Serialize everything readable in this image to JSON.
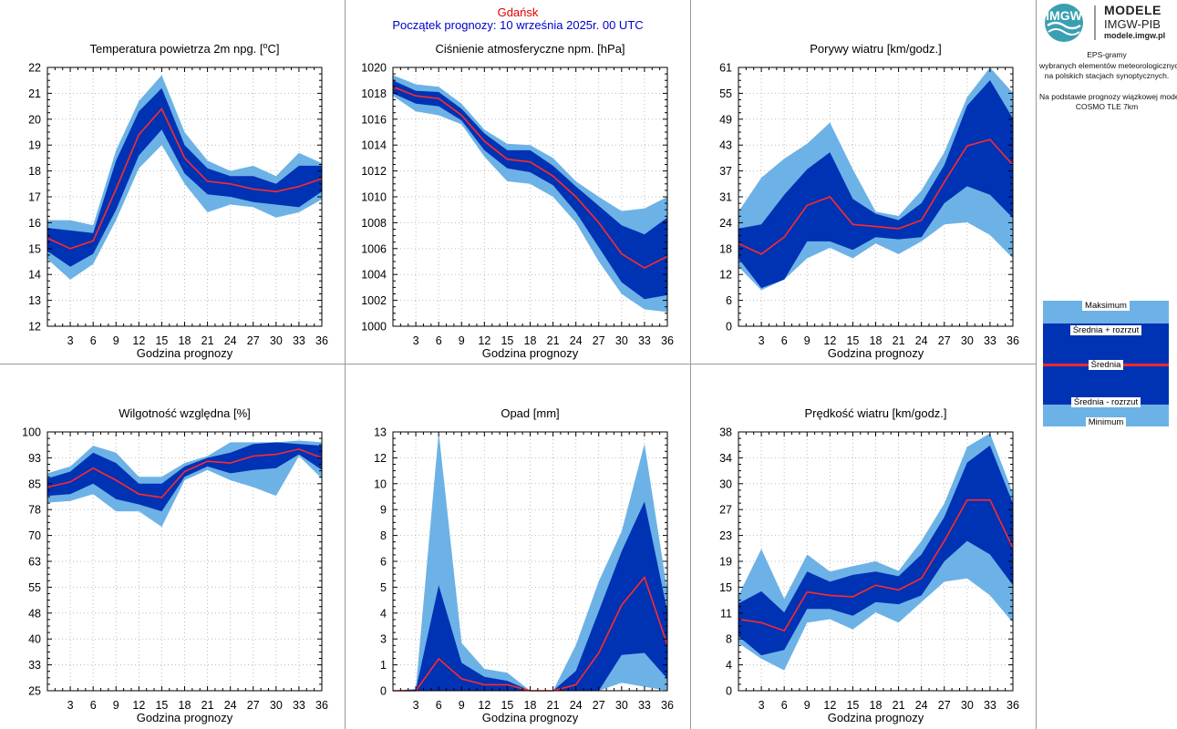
{
  "header": {
    "station": "Gdańsk",
    "forecast_start": "Początek prognozy: 10 września 2025r. 00 UTC"
  },
  "sidebar": {
    "logo_title": "MODELE",
    "logo_subtitle": "IMGW-PIB",
    "logo_url": "modele.imgw.pl",
    "logo_mark": "IMGW",
    "description_lines": [
      "EPS-gramy",
      "wybranych elementów meteorologicznych",
      "na polskich stacjach  synoptycznych.",
      "",
      "Na podstawie prognozy wiązkowej modelu",
      "COSMO TLE 7km"
    ],
    "legend": {
      "max": "Maksimum",
      "mean_plus": "Średnia + rozrzut",
      "mean": "Średnia",
      "mean_minus": "Średnia - rozrzut",
      "min": "Minimum"
    }
  },
  "colors": {
    "outer_band": "#6cb2e6",
    "inner_band": "#0032b4",
    "mean_line": "#ff2a2a",
    "grid": "#bbbbbb",
    "divider": "#999999"
  },
  "chart_data": [
    {
      "type": "area",
      "title": "Temperatura powietrza 2m npg. [°C]",
      "xlabel": "Godzina prognozy",
      "ylabel": "",
      "xlim": [
        0,
        36
      ],
      "ylim": [
        12,
        22
      ],
      "xticks": [
        3,
        6,
        9,
        12,
        15,
        18,
        21,
        24,
        27,
        30,
        33,
        36
      ],
      "yticks": [
        "12",
        "13",
        "14",
        "15",
        "16",
        "17",
        "18",
        "19",
        "20",
        "21",
        "22"
      ],
      "x": [
        0,
        3,
        6,
        9,
        12,
        15,
        18,
        21,
        24,
        27,
        30,
        33,
        36
      ],
      "series": [
        {
          "name": "Maksimum",
          "values": [
            16.1,
            16.1,
            15.9,
            18.8,
            20.7,
            21.7,
            19.5,
            18.4,
            18.0,
            18.2,
            17.8,
            18.7,
            18.3
          ]
        },
        {
          "name": "Średnia + rozrzut",
          "values": [
            15.8,
            15.7,
            15.6,
            18.4,
            20.3,
            21.2,
            19.0,
            18.1,
            17.8,
            17.8,
            17.5,
            18.2,
            18.2
          ]
        },
        {
          "name": "Średnia",
          "values": [
            15.4,
            15.0,
            15.3,
            17.3,
            19.4,
            20.4,
            18.5,
            17.6,
            17.5,
            17.3,
            17.2,
            17.4,
            17.7
          ]
        },
        {
          "name": "Średnia - rozrzut",
          "values": [
            14.9,
            14.3,
            14.8,
            16.5,
            18.6,
            19.6,
            17.9,
            17.1,
            17.0,
            16.8,
            16.7,
            16.6,
            17.2
          ]
        },
        {
          "name": "Minimum",
          "values": [
            14.6,
            13.8,
            14.4,
            16.1,
            18.1,
            19.0,
            17.5,
            16.4,
            16.7,
            16.6,
            16.2,
            16.4,
            16.9
          ]
        }
      ]
    },
    {
      "type": "area",
      "title": "Ciśnienie atmosferyczne npm. [hPa]",
      "xlabel": "Godzina prognozy",
      "ylabel": "",
      "xlim": [
        0,
        36
      ],
      "ylim": [
        1000,
        1020
      ],
      "xticks": [
        3,
        6,
        9,
        12,
        15,
        18,
        21,
        24,
        27,
        30,
        33,
        36
      ],
      "yticks": [
        "1000",
        "1002",
        "1004",
        "1006",
        "1008",
        "1010",
        "1012",
        "1014",
        "1016",
        "1018",
        "1020"
      ],
      "x": [
        0,
        3,
        6,
        9,
        12,
        15,
        18,
        21,
        24,
        27,
        30,
        33,
        36
      ],
      "series": [
        {
          "name": "Maksimum",
          "values": [
            1019.4,
            1018.7,
            1018.5,
            1017.2,
            1015.2,
            1014.1,
            1014.0,
            1013.0,
            1011.2,
            1010.0,
            1008.9,
            1009.1,
            1010.0
          ]
        },
        {
          "name": "Średnia + rozrzut",
          "values": [
            1019.0,
            1018.2,
            1018.1,
            1016.8,
            1014.9,
            1013.6,
            1013.6,
            1012.4,
            1010.8,
            1009.3,
            1007.8,
            1007.1,
            1008.4
          ]
        },
        {
          "name": "Średnia",
          "values": [
            1018.5,
            1017.8,
            1017.6,
            1016.3,
            1014.3,
            1012.9,
            1012.7,
            1011.6,
            1010.0,
            1008.0,
            1005.6,
            1004.5,
            1005.4
          ]
        },
        {
          "name": "Średnia - rozrzut",
          "values": [
            1018.0,
            1017.2,
            1017.0,
            1015.9,
            1013.6,
            1012.2,
            1011.9,
            1010.9,
            1008.8,
            1006.1,
            1003.4,
            1002.1,
            1002.4
          ]
        },
        {
          "name": "Minimum",
          "values": [
            1017.8,
            1016.6,
            1016.3,
            1015.6,
            1013.1,
            1011.2,
            1011.0,
            1010.0,
            1008.0,
            1005.0,
            1002.5,
            1001.3,
            1001.1
          ]
        }
      ]
    },
    {
      "type": "area",
      "title": "Porywy wiatru [km/godz.]",
      "xlabel": "Godzina prognozy",
      "ylabel": "",
      "xlim": [
        0,
        36
      ],
      "ylim": [
        0,
        61
      ],
      "xticks": [
        3,
        6,
        9,
        12,
        15,
        18,
        21,
        24,
        27,
        30,
        33,
        36
      ],
      "yticks": [
        "0",
        "6",
        "12",
        "18",
        "24",
        "31",
        "37",
        "43",
        "49",
        "55",
        "61"
      ],
      "x": [
        0,
        3,
        6,
        9,
        12,
        15,
        18,
        21,
        24,
        27,
        30,
        33,
        36
      ],
      "series": [
        {
          "name": "Maksimum",
          "values": [
            27.0,
            35.0,
            39.5,
            43.0,
            48.0,
            37.0,
            27.0,
            26.0,
            32.0,
            41.0,
            54.0,
            61.0,
            55.0
          ]
        },
        {
          "name": "Średnia + rozrzut",
          "values": [
            23.0,
            24.0,
            31.0,
            37.0,
            41.0,
            30.0,
            26.5,
            25.0,
            29.0,
            38.0,
            52.0,
            58.0,
            49.0
          ]
        },
        {
          "name": "Średnia",
          "values": [
            19.5,
            17.0,
            21.0,
            28.5,
            30.5,
            24.0,
            23.5,
            23.0,
            25.0,
            34.0,
            42.5,
            44.0,
            38.0
          ]
        },
        {
          "name": "Średnia - rozrzut",
          "values": [
            16.0,
            9.0,
            11.0,
            20.0,
            20.0,
            18.0,
            21.0,
            20.5,
            21.0,
            29.0,
            33.0,
            31.0,
            25.5
          ]
        },
        {
          "name": "Minimum",
          "values": [
            14.0,
            8.5,
            11.0,
            16.0,
            18.5,
            16.0,
            19.5,
            17.0,
            20.0,
            24.0,
            24.5,
            21.5,
            16.0
          ]
        }
      ]
    },
    {
      "type": "area",
      "title": "Wilgotność względna [%]",
      "xlabel": "Godzina prognozy",
      "ylabel": "",
      "xlim": [
        0,
        36
      ],
      "ylim": [
        25,
        100
      ],
      "xticks": [
        3,
        6,
        9,
        12,
        15,
        18,
        21,
        24,
        27,
        30,
        33,
        36
      ],
      "yticks": [
        "25",
        "33",
        "40",
        "48",
        "55",
        "63",
        "70",
        "78",
        "85",
        "93",
        "100"
      ],
      "x": [
        0,
        3,
        6,
        9,
        12,
        15,
        18,
        21,
        24,
        27,
        30,
        33,
        36
      ],
      "series": [
        {
          "name": "Maksimum",
          "values": [
            88.0,
            90.0,
            96.0,
            94.0,
            87.0,
            87.0,
            91.0,
            93.0,
            97.0,
            97.0,
            97.0,
            97.5,
            97.0
          ]
        },
        {
          "name": "Średnia + rozrzut",
          "values": [
            86.5,
            88.5,
            94.0,
            91.0,
            85.0,
            85.0,
            90.0,
            92.5,
            94.0,
            96.5,
            97.0,
            96.5,
            96.0
          ]
        },
        {
          "name": "Średnia",
          "values": [
            84.0,
            85.5,
            89.5,
            86.0,
            82.0,
            81.0,
            88.5,
            91.5,
            91.0,
            93.0,
            93.5,
            95.0,
            92.5
          ]
        },
        {
          "name": "Średnia - rozrzut",
          "values": [
            81.5,
            82.0,
            85.0,
            80.5,
            79.0,
            77.0,
            87.0,
            90.0,
            88.0,
            89.0,
            89.5,
            93.5,
            89.0
          ]
        },
        {
          "name": "Minimum",
          "values": [
            79.5,
            80.0,
            82.0,
            77.0,
            77.0,
            72.5,
            86.0,
            89.0,
            86.0,
            84.0,
            81.5,
            93.0,
            86.5
          ]
        }
      ]
    },
    {
      "type": "area",
      "title": "Opad [mm]",
      "xlabel": "Godzina prognozy",
      "ylabel": "",
      "xlim": [
        0,
        36
      ],
      "ylim": [
        0,
        13
      ],
      "xticks": [
        3,
        6,
        9,
        12,
        15,
        18,
        21,
        24,
        27,
        30,
        33,
        36
      ],
      "yticks": [
        "0",
        "1",
        "3",
        "4",
        "5",
        "6",
        "8",
        "9",
        "10",
        "12",
        "13"
      ],
      "x": [
        0,
        3,
        6,
        9,
        12,
        15,
        18,
        21,
        24,
        27,
        30,
        33,
        36
      ],
      "series": [
        {
          "name": "Maksimum",
          "values": [
            0.0,
            0.1,
            13.0,
            2.4,
            1.1,
            0.9,
            0.0,
            0.0,
            2.3,
            5.5,
            8.0,
            12.4,
            5.0
          ]
        },
        {
          "name": "Średnia + rozrzut",
          "values": [
            0.0,
            0.05,
            5.3,
            1.4,
            0.7,
            0.5,
            0.0,
            0.0,
            1.0,
            4.0,
            7.0,
            9.5,
            4.0
          ]
        },
        {
          "name": "Średnia",
          "values": [
            0.0,
            0.0,
            1.6,
            0.6,
            0.3,
            0.3,
            0.0,
            0.0,
            0.3,
            1.9,
            4.3,
            5.7,
            2.3
          ]
        },
        {
          "name": "Średnia - rozrzut",
          "values": [
            0.0,
            0.0,
            0.0,
            0.0,
            0.0,
            0.0,
            0.0,
            0.0,
            0.0,
            0.0,
            1.8,
            1.9,
            0.6
          ]
        },
        {
          "name": "Minimum",
          "values": [
            0.0,
            0.0,
            0.0,
            0.0,
            0.0,
            0.0,
            0.0,
            0.0,
            0.0,
            0.0,
            0.4,
            0.2,
            0.0
          ]
        }
      ]
    },
    {
      "type": "area",
      "title": "Prędkość wiatru [km/godz.]",
      "xlabel": "Godzina prognozy",
      "ylabel": "",
      "xlim": [
        0,
        36
      ],
      "ylim": [
        0,
        38
      ],
      "xticks": [
        3,
        6,
        9,
        12,
        15,
        18,
        21,
        24,
        27,
        30,
        33,
        36
      ],
      "yticks": [
        "0",
        "4",
        "8",
        "11",
        "15",
        "19",
        "23",
        "27",
        "30",
        "34",
        "38"
      ],
      "x": [
        0,
        3,
        6,
        9,
        12,
        15,
        18,
        21,
        24,
        27,
        30,
        33,
        36
      ],
      "series": [
        {
          "name": "Maksimum",
          "values": [
            14.0,
            20.8,
            13.5,
            20.0,
            17.5,
            18.3,
            19.0,
            17.6,
            22.0,
            27.5,
            35.8,
            37.8,
            29.0
          ]
        },
        {
          "name": "Średnia + rozrzut",
          "values": [
            12.8,
            14.6,
            11.5,
            17.5,
            16.0,
            17.0,
            17.5,
            16.8,
            20.0,
            25.5,
            33.5,
            36.0,
            27.5
          ]
        },
        {
          "name": "Średnia",
          "values": [
            10.5,
            10.0,
            8.8,
            14.5,
            14.0,
            13.8,
            15.5,
            14.8,
            16.5,
            22.0,
            28.0,
            28.0,
            21.0
          ]
        },
        {
          "name": "Średnia - rozrzut",
          "values": [
            8.0,
            5.2,
            6.0,
            12.0,
            12.0,
            11.0,
            13.0,
            12.7,
            14.0,
            19.0,
            22.0,
            20.0,
            15.5
          ]
        },
        {
          "name": "Minimum",
          "values": [
            7.0,
            4.7,
            3.0,
            10.0,
            10.5,
            9.0,
            11.5,
            10.0,
            13.0,
            16.0,
            16.5,
            14.0,
            10.0
          ]
        }
      ]
    }
  ]
}
